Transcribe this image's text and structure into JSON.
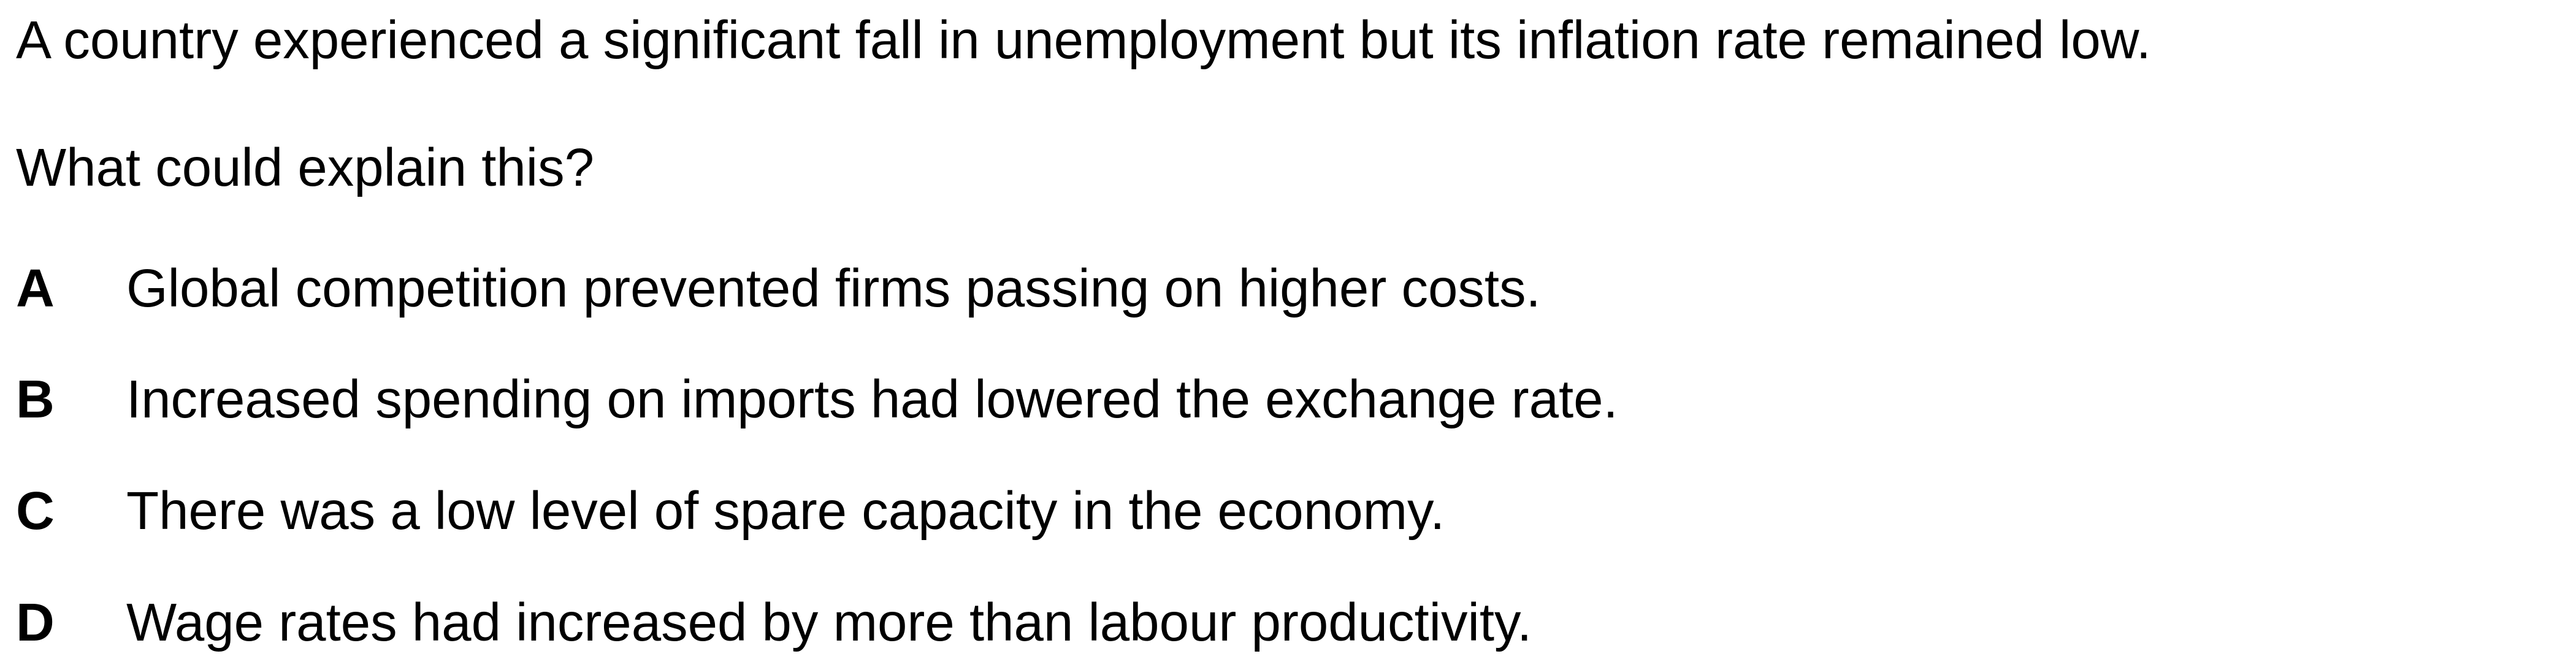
{
  "stem": "A country experienced a significant fall in unemployment but its inflation rate remained low.",
  "question": "What could explain this?",
  "options": [
    {
      "letter": "A",
      "text": "Global competition prevented firms passing on higher costs."
    },
    {
      "letter": "B",
      "text": "Increased spending on imports had lowered the exchange rate."
    },
    {
      "letter": "C",
      "text": "There was a low level of spare capacity in the economy."
    },
    {
      "letter": "D",
      "text": "Wage rates had increased by more than labour productivity."
    }
  ]
}
